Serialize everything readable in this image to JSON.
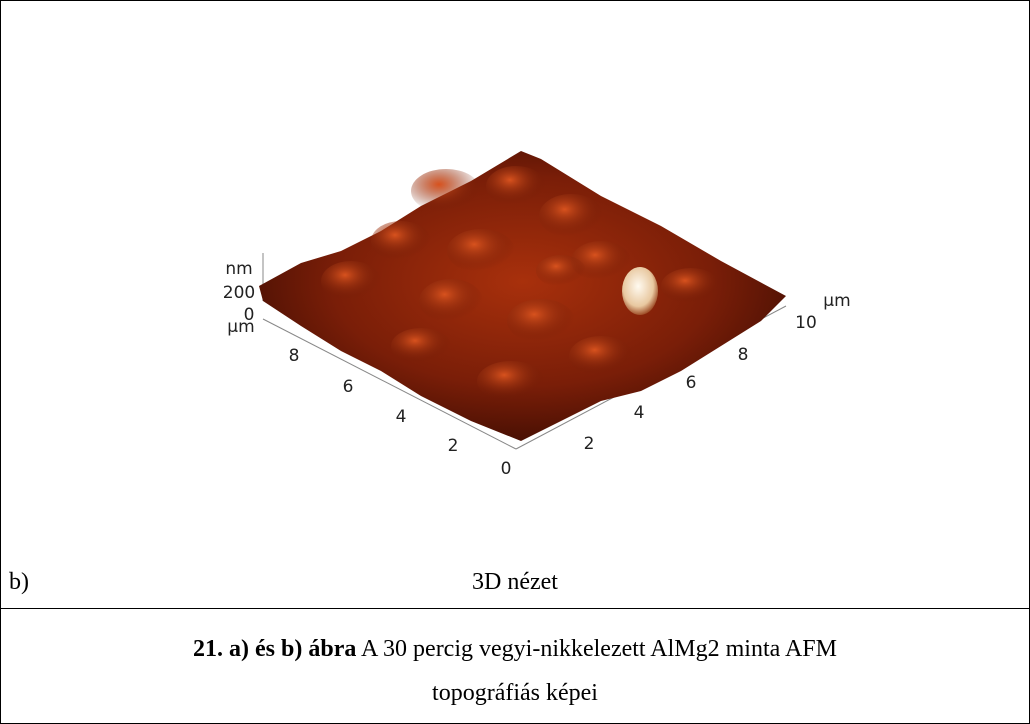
{
  "figure": {
    "afm_image": {
      "z_axis": {
        "unit": "nm",
        "ticks": [
          "200",
          "0"
        ]
      },
      "left_axis": {
        "unit": "µm",
        "ticks": [
          "8",
          "6",
          "4",
          "2",
          "0"
        ]
      },
      "right_axis": {
        "unit": "µm",
        "ticks": [
          "2",
          "4",
          "6",
          "8",
          "10"
        ]
      }
    },
    "panel_label": "b)",
    "view_label": "3D nézet",
    "caption": {
      "number": "21. a) és b) ábra",
      "text": "A 30 percig vegyi-nikkelezett AlMg2 minta AFM",
      "text_line2": "topográfiás képei"
    }
  }
}
